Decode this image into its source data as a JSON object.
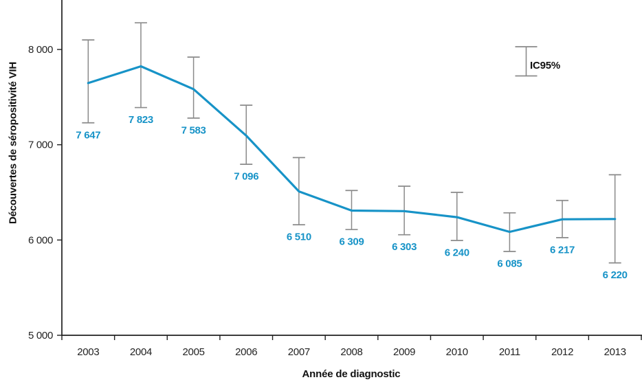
{
  "chart_data": {
    "type": "line",
    "title": "",
    "xlabel": "Année de diagnostic",
    "ylabel": "Découvertes de séropositivité VIH",
    "categories": [
      "2003",
      "2004",
      "2005",
      "2006",
      "2007",
      "2008",
      "2009",
      "2010",
      "2011",
      "2012",
      "2013"
    ],
    "series": [
      {
        "name": "Découvertes de séropositivité VIH",
        "values": [
          7647,
          7823,
          7583,
          7096,
          6510,
          6309,
          6303,
          6240,
          6085,
          6217,
          6220
        ],
        "value_labels": [
          "7 647",
          "7 823",
          "7 583",
          "7 096",
          "6 510",
          "6 309",
          "6 303",
          "6 240",
          "6 085",
          "6 217",
          "6 220"
        ],
        "ci_low": [
          7230,
          7390,
          7280,
          6795,
          6160,
          6110,
          6055,
          5995,
          5880,
          6025,
          5760
        ],
        "ci_high": [
          8100,
          8280,
          7920,
          7415,
          6865,
          6520,
          6565,
          6500,
          6285,
          6415,
          6685
        ]
      }
    ],
    "ylim": [
      5000,
      8000
    ],
    "yticks": [
      5000,
      6000,
      7000,
      8000
    ],
    "ytick_labels": [
      "5 000",
      "6 000",
      "7 000",
      "8 000"
    ],
    "legend": {
      "label": "IC95%",
      "position": "top-right"
    },
    "grid": false,
    "colors": {
      "line": "#1793c7",
      "data_label": "#1793c7",
      "error_bar": "#8a8a8a",
      "axis": "#1f1f1f",
      "tick_text": "#232323",
      "title_text": "#111111"
    }
  }
}
